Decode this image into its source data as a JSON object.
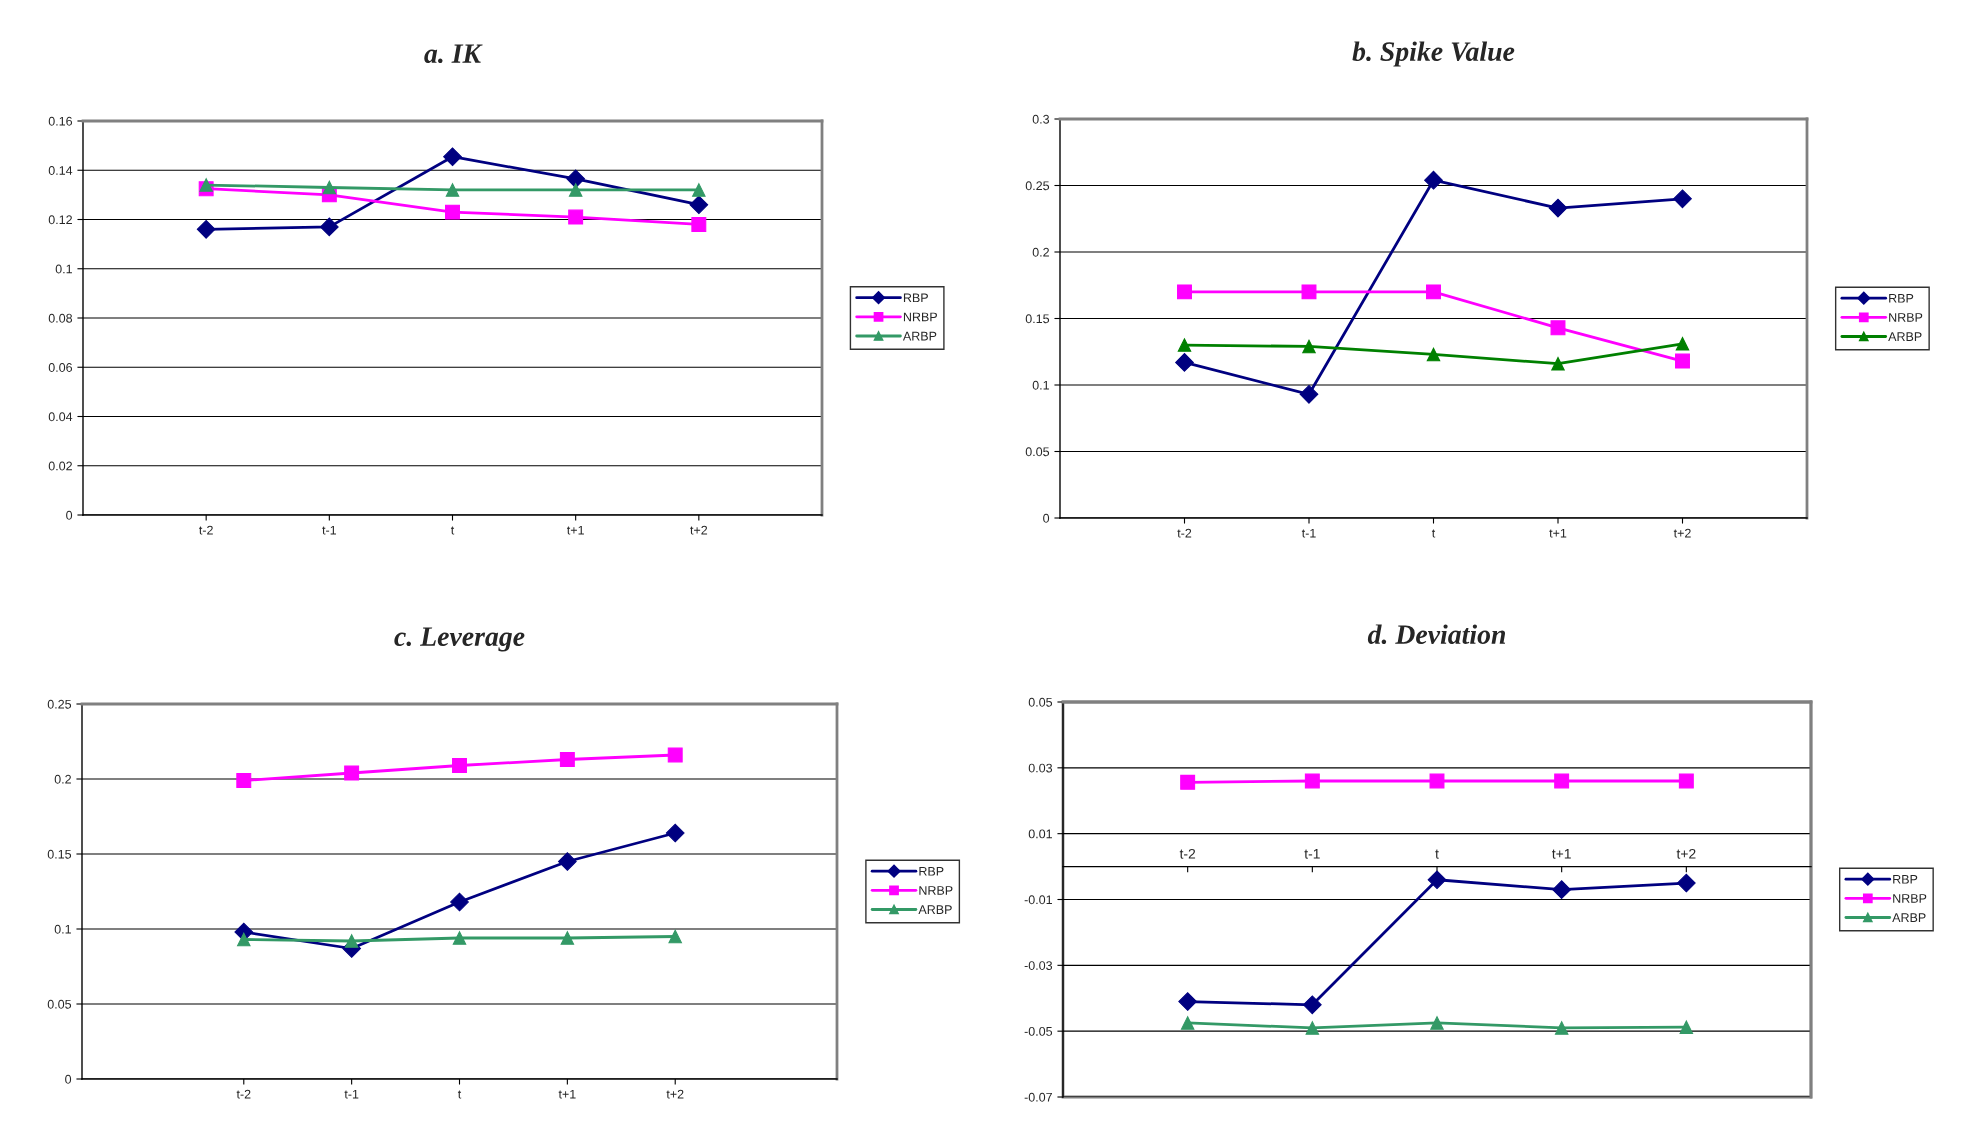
{
  "chart_data": [
    {
      "type": "line",
      "title": "a. IK",
      "categories": [
        "t-2",
        "t-1",
        "t",
        "t+1",
        "t+2"
      ],
      "ylim": [
        0,
        0.16
      ],
      "yticks": [
        0,
        0.02,
        0.04,
        0.06,
        0.08,
        0.1,
        0.12,
        0.14,
        0.16
      ],
      "grid": "y",
      "legend": "right",
      "series": [
        {
          "name": "RBP",
          "color": "#000080",
          "marker": "diamond",
          "values": [
            0.116,
            0.117,
            0.1455,
            0.1365,
            0.126
          ]
        },
        {
          "name": "NRBP",
          "color": "#ff00ff",
          "marker": "square",
          "values": [
            0.1325,
            0.13,
            0.123,
            0.121,
            0.118
          ]
        },
        {
          "name": "ARBP",
          "color": "#339966",
          "marker": "triangle",
          "values": [
            0.134,
            0.133,
            0.132,
            0.132,
            0.132
          ]
        }
      ]
    },
    {
      "type": "line",
      "title": "b. Spike Value",
      "categories": [
        "t-2",
        "t-1",
        "t",
        "t+1",
        "t+2"
      ],
      "ylim": [
        0,
        0.3
      ],
      "yticks": [
        0,
        0.05,
        0.1,
        0.15,
        0.2,
        0.25,
        0.3
      ],
      "grid": "y",
      "legend": "right",
      "series": [
        {
          "name": "RBP",
          "color": "#000080",
          "marker": "diamond",
          "values": [
            0.117,
            0.093,
            0.254,
            0.233,
            0.24
          ]
        },
        {
          "name": "NRBP",
          "color": "#ff00ff",
          "marker": "square",
          "values": [
            0.17,
            0.17,
            0.17,
            0.143,
            0.118
          ]
        },
        {
          "name": "ARBP",
          "color": "#008000",
          "marker": "triangle",
          "values": [
            0.13,
            0.129,
            0.123,
            0.116,
            0.131
          ]
        }
      ]
    },
    {
      "type": "line",
      "title": "c. Leverage",
      "categories": [
        "t-2",
        "t-1",
        "t",
        "t+1",
        "t+2"
      ],
      "ylim": [
        0,
        0.25
      ],
      "yticks": [
        0,
        0.05,
        0.1,
        0.15,
        0.2,
        0.25
      ],
      "grid": "y",
      "legend": "right",
      "series": [
        {
          "name": "RBP",
          "color": "#000080",
          "marker": "diamond",
          "values": [
            0.098,
            0.087,
            0.118,
            0.145,
            0.164
          ]
        },
        {
          "name": "NRBP",
          "color": "#ff00ff",
          "marker": "square",
          "values": [
            0.199,
            0.204,
            0.209,
            0.213,
            0.216
          ]
        },
        {
          "name": "ARBP",
          "color": "#339966",
          "marker": "triangle",
          "values": [
            0.093,
            0.092,
            0.094,
            0.094,
            0.095
          ]
        }
      ]
    },
    {
      "type": "line",
      "title": "d. Deviation",
      "categories": [
        "t-2",
        "t-1",
        "t",
        "t+1",
        "t+2"
      ],
      "ylim": [
        -0.07,
        0.05
      ],
      "yticks": [
        -0.07,
        -0.05,
        -0.03,
        -0.01,
        0.01,
        0.03,
        0.05
      ],
      "grid": "y",
      "legend": "right",
      "series": [
        {
          "name": "RBP",
          "color": "#000080",
          "marker": "diamond",
          "values": [
            -0.041,
            -0.042,
            -0.004,
            -0.007,
            -0.005
          ]
        },
        {
          "name": "NRBP",
          "color": "#ff00ff",
          "marker": "square",
          "values": [
            0.0256,
            0.026,
            0.026,
            0.026,
            0.026
          ]
        },
        {
          "name": "ARBP",
          "color": "#339966",
          "marker": "triangle",
          "values": [
            -0.0475,
            -0.049,
            -0.0475,
            -0.049,
            -0.0488
          ]
        }
      ]
    }
  ]
}
